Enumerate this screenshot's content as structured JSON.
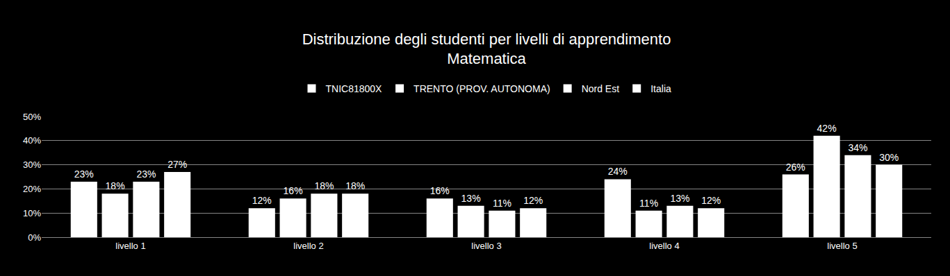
{
  "chart_data": {
    "type": "bar",
    "title": "Distribuzione degli studenti per livelli di apprendimento",
    "subtitle": "Matematica",
    "categories": [
      "livello 1",
      "livello 2",
      "livello 3",
      "livello 4",
      "livello 5"
    ],
    "series": [
      {
        "name": "TNIC81800X",
        "color": "#ffffff",
        "values": [
          23,
          12,
          16,
          24,
          26
        ],
        "value_labels": [
          "23%",
          "12%",
          "16%",
          "24%",
          "26%"
        ]
      },
      {
        "name": "TRENTO (PROV. AUTONOMA)",
        "color": "#ffffff",
        "values": [
          18,
          16,
          13,
          11,
          42
        ],
        "value_labels": [
          "18%",
          "16%",
          "13%",
          "11%",
          "42%"
        ]
      },
      {
        "name": "Nord Est",
        "color": "#ffffff",
        "values": [
          23,
          18,
          11,
          13,
          34
        ],
        "value_labels": [
          "23%",
          "18%",
          "11%",
          "13%",
          "34%"
        ]
      },
      {
        "name": "Italia",
        "color": "#ffffff",
        "values": [
          27,
          18,
          12,
          12,
          30
        ],
        "value_labels": [
          "27%",
          "18%",
          "12%",
          "12%",
          "30%"
        ]
      }
    ],
    "ylim": [
      0,
      50
    ],
    "yticks": [
      {
        "value": 0,
        "label": "0%"
      },
      {
        "value": 10,
        "label": "10%"
      },
      {
        "value": 20,
        "label": "20%"
      },
      {
        "value": 30,
        "label": "30%"
      },
      {
        "value": 40,
        "label": "40%"
      },
      {
        "value": 50,
        "label": "50%"
      }
    ],
    "grid": true,
    "legend": "top",
    "data_labels": true
  }
}
